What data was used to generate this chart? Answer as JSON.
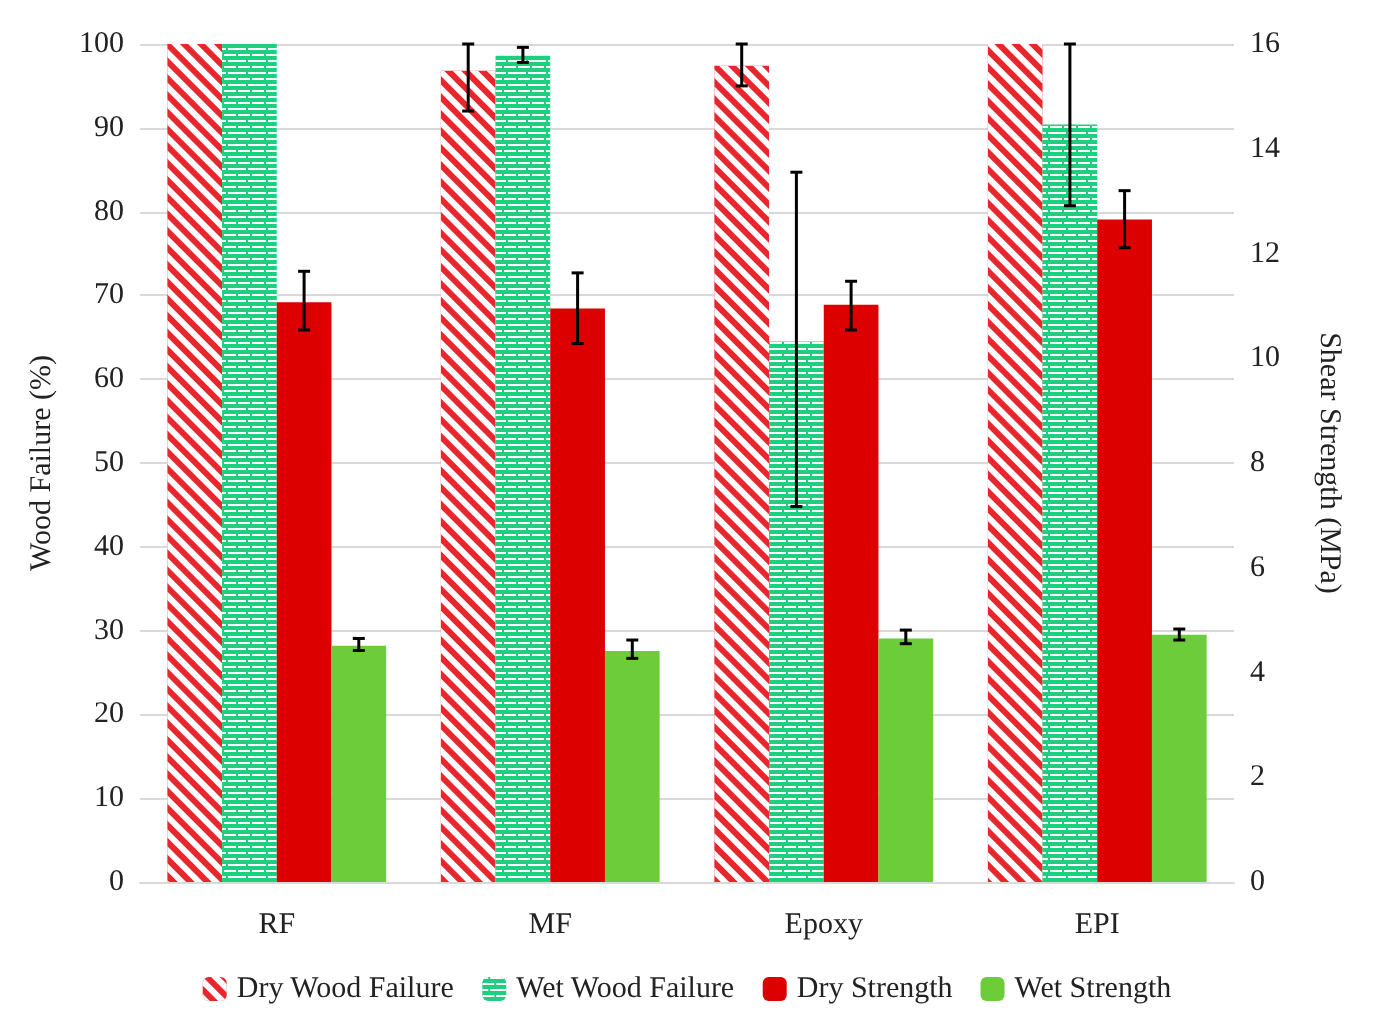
{
  "chart_data": {
    "type": "bar",
    "categories": [
      "RF",
      "MF",
      "Epoxy",
      "EPI"
    ],
    "ylabel": "Wood Failure (%)",
    "y2label": "Shear Strength (MPa)",
    "ylim": [
      0,
      100
    ],
    "yticks": [
      0,
      10,
      20,
      30,
      40,
      50,
      60,
      70,
      80,
      90,
      100
    ],
    "y2lim": [
      0,
      16
    ],
    "y2ticks": [
      0,
      2,
      4,
      6,
      8,
      10,
      12,
      14,
      16
    ],
    "grid": "y",
    "legend": "bottom",
    "series": [
      {
        "name": "Dry Wood Failure",
        "color": "#e8262e",
        "values": [
          100,
          96.8,
          97.4,
          100
        ],
        "errors": [
          null,
          [
            92.0,
            100
          ],
          [
            95.0,
            100
          ],
          null
        ]
      },
      {
        "name": "Wet Wood Failure",
        "color": "#1fcf80",
        "values": [
          100,
          98.6,
          64.5,
          90.4
        ],
        "errors": [
          null,
          [
            97.8,
            99.6
          ],
          [
            44.8,
            84.7
          ],
          [
            80.7,
            100
          ]
        ]
      },
      {
        "name": "Dry Strength",
        "color": "#dd0000",
        "axis": "y2",
        "values": [
          11.07,
          10.95,
          11.02,
          12.65
        ],
        "errors": [
          [
            10.54,
            11.66
          ],
          [
            10.28,
            11.63
          ],
          [
            10.54,
            11.47
          ],
          [
            12.11,
            13.2
          ]
        ]
      },
      {
        "name": "Wet Strength",
        "color": "#6dcc3a",
        "axis": "y2",
        "values": [
          4.51,
          4.41,
          4.65,
          4.72
        ],
        "errors": [
          [
            4.42,
            4.65
          ],
          [
            4.27,
            4.62
          ],
          [
            4.55,
            4.81
          ],
          [
            4.62,
            4.83
          ]
        ]
      }
    ]
  }
}
